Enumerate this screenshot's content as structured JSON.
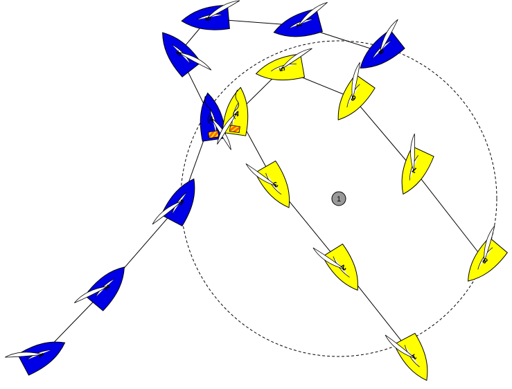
{
  "scene": {
    "mark": {
      "label": "1",
      "fill": "#999999"
    },
    "fleets": [
      {
        "name": "blue",
        "hull_color": "#0000e6",
        "boats": [
          {
            "label": "1"
          },
          {
            "label": "2"
          },
          {
            "label": "3"
          },
          {
            "label": "4"
          },
          {
            "label": "5"
          },
          {
            "label": "6"
          },
          {
            "label": "7"
          },
          {
            "label": "8"
          }
        ]
      },
      {
        "name": "yellow",
        "hull_color": "#ffff00",
        "boats": [
          {
            "label": "1"
          },
          {
            "label": "2"
          },
          {
            "label": "3"
          },
          {
            "label": "4"
          },
          {
            "label": "5"
          },
          {
            "label": "6"
          },
          {
            "label": "7"
          },
          {
            "label": "8"
          }
        ]
      }
    ],
    "flag_colors": {
      "base": "#ff6600",
      "stripe": "#ffdd00"
    }
  }
}
